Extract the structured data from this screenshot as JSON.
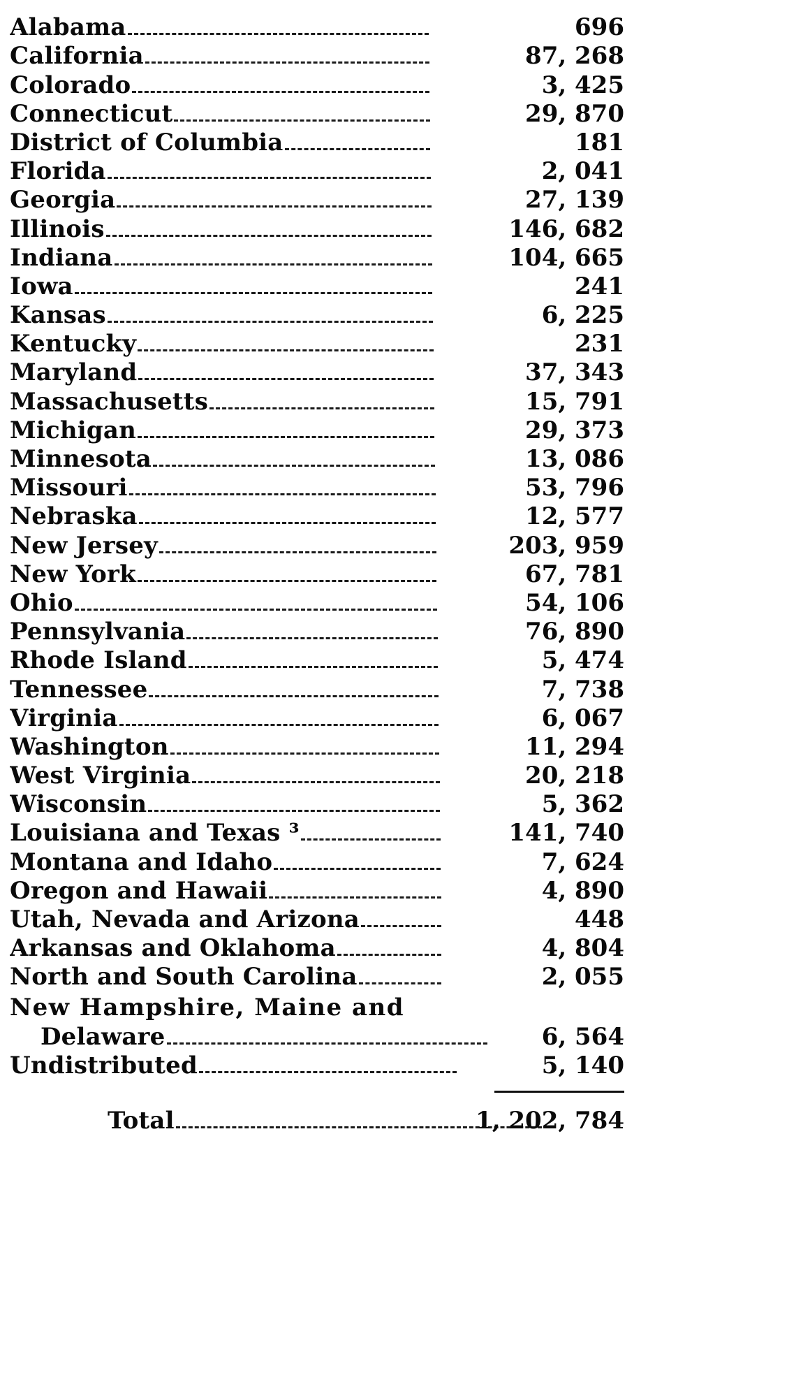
{
  "rows": [
    {
      "label": "Alabama",
      "value": "696"
    },
    {
      "label": "California",
      "value": "87, 268"
    },
    {
      "label": "Colorado",
      "value": "3, 425"
    },
    {
      "label": "Connecticut",
      "value": "29, 870"
    },
    {
      "label": "District of Columbia",
      "value": "181"
    },
    {
      "label": "Florida",
      "value": "2, 041"
    },
    {
      "label": "Georgia",
      "value": "27, 139"
    },
    {
      "label": "Illinois",
      "value": "146, 682"
    },
    {
      "label": "Indiana",
      "value": "104, 665"
    },
    {
      "label": "Iowa",
      "value": "241"
    },
    {
      "label": "Kansas",
      "value": "6, 225"
    },
    {
      "label": "Kentucky",
      "value": "231"
    },
    {
      "label": "Maryland",
      "value": "37, 343"
    },
    {
      "label": "Massachusetts",
      "value": "15, 791"
    },
    {
      "label": "Michigan",
      "value": "29, 373"
    },
    {
      "label": "Minnesota",
      "value": "13, 086"
    },
    {
      "label": "Missouri",
      "value": "53, 796"
    },
    {
      "label": "Nebraska",
      "value": "12, 577"
    },
    {
      "label": "New Jersey",
      "value": "203, 959"
    },
    {
      "label": "New York",
      "value": "67, 781"
    },
    {
      "label": "Ohio",
      "value": "54, 106"
    },
    {
      "label": "Pennsylvania",
      "value": "76, 890"
    },
    {
      "label": "Rhode Island",
      "value": "5, 474"
    },
    {
      "label": "Tennessee",
      "value": "7, 738"
    },
    {
      "label": "Virginia",
      "value": "6, 067"
    },
    {
      "label": "Washington",
      "value": "11, 294"
    },
    {
      "label": "West Virginia",
      "value": "20, 218"
    },
    {
      "label": "Wisconsin",
      "value": "5, 362"
    },
    {
      "label": "Louisiana and Texas ³",
      "value": "141, 740"
    },
    {
      "label": "Montana and Idaho",
      "value": "7, 624"
    },
    {
      "label": "Oregon and Hawaii",
      "value": "4, 890"
    },
    {
      "label": "Utah, Nevada and Arizona",
      "value": "448"
    },
    {
      "label": "Arkansas and Oklahoma",
      "value": "4, 804"
    },
    {
      "label": "North and South Carolina",
      "value": "2, 055"
    }
  ],
  "wrapped_row": {
    "label_line1": "New Hampshire, Maine and",
    "label_line2": "Delaware",
    "value": "6, 564"
  },
  "undistributed": {
    "label": "Undistributed",
    "value": "5, 140"
  },
  "total": {
    "label": "Total",
    "value": "1, 202, 784"
  }
}
